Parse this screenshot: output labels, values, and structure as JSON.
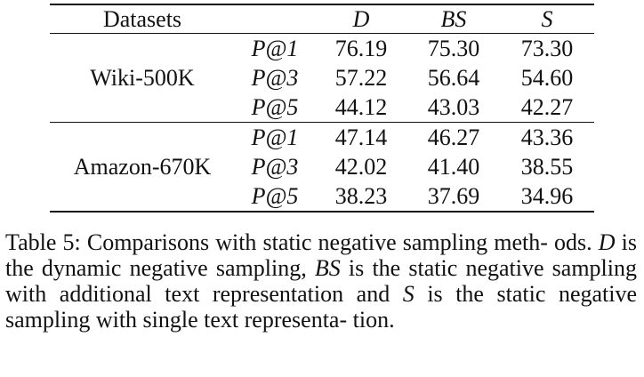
{
  "table": {
    "headers": [
      "Datasets",
      "",
      "D",
      "BS",
      "S"
    ],
    "groups": [
      {
        "dataset": "Wiki-500K",
        "rows": [
          {
            "metric": "P@1",
            "values": [
              "76.19",
              "75.30",
              "73.30"
            ]
          },
          {
            "metric": "P@3",
            "values": [
              "57.22",
              "56.64",
              "54.60"
            ]
          },
          {
            "metric": "P@5",
            "values": [
              "44.12",
              "43.03",
              "42.27"
            ]
          }
        ]
      },
      {
        "dataset": "Amazon-670K",
        "rows": [
          {
            "metric": "P@1",
            "values": [
              "47.14",
              "46.27",
              "43.36"
            ]
          },
          {
            "metric": "P@3",
            "values": [
              "42.02",
              "41.40",
              "38.55"
            ]
          },
          {
            "metric": "P@5",
            "values": [
              "38.23",
              "37.69",
              "34.96"
            ]
          }
        ]
      }
    ]
  },
  "caption": {
    "t1": "Table 5: Comparisons with static negative sampling meth-",
    "t2a": "ods. ",
    "sym_d": "D",
    "t2b": " is the dynamic negative sampling, ",
    "sym_bs": "BS",
    "t2c": " is the static",
    "t3a": "negative sampling with additional text representation and ",
    "sym_s": "S",
    "t4": "is the static negative sampling with single text representa-",
    "t5": "tion."
  }
}
